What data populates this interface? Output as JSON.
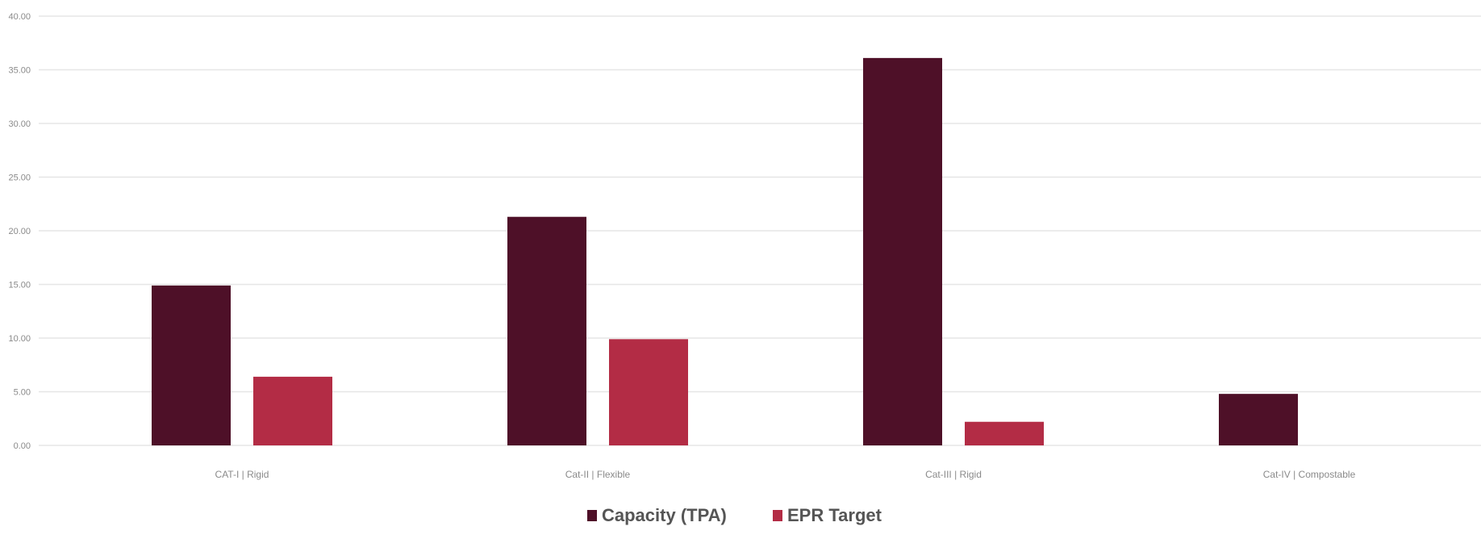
{
  "chart_data": {
    "type": "bar",
    "categories": [
      "CAT-I | Rigid",
      "Cat-II | Flexible",
      "Cat-III | Rigid",
      "Cat-IV | Compostable"
    ],
    "series": [
      {
        "name": "Capacity (TPA)",
        "values": [
          14.9,
          21.3,
          36.1,
          4.8
        ],
        "color": "#4e1028"
      },
      {
        "name": "EPR Target",
        "values": [
          6.4,
          9.9,
          2.2,
          0
        ],
        "color": "#b32c45"
      }
    ],
    "yticks": [
      "0.00",
      "5.00",
      "10.00",
      "15.00",
      "20.00",
      "25.00",
      "30.00",
      "35.00",
      "40.00"
    ],
    "ylim": [
      0,
      40
    ],
    "grid": true,
    "legend_position": "bottom-center"
  }
}
